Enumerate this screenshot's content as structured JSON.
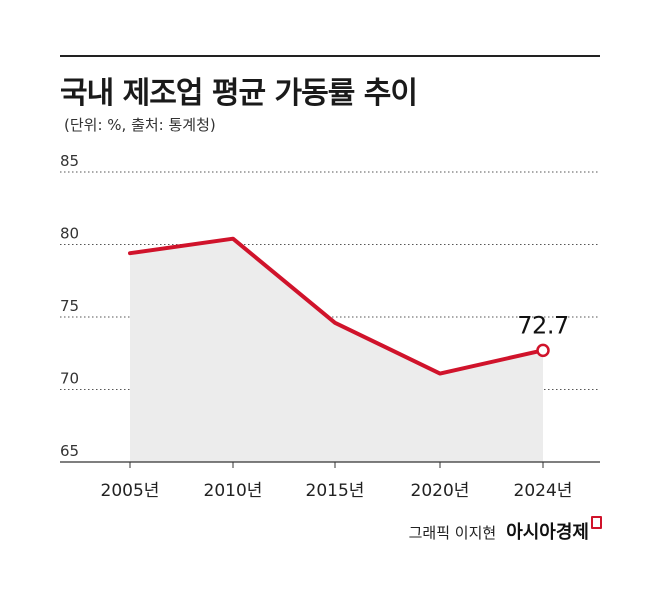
{
  "title": "국내 제조업 평균 가동률 추이",
  "subtitle": "(단위: %, 출처: 통계청)",
  "credit": {
    "artist": "그래픽 이지현",
    "brand": "아시아경제"
  },
  "colors": {
    "line": "#d0132b",
    "area": "#ececec",
    "grid": "#555555",
    "axis": "#333333",
    "rule": "#222222"
  },
  "chart_data": {
    "type": "line",
    "title": "국내 제조업 평균 가동률 추이",
    "xlabel": "",
    "ylabel": "",
    "categories": [
      "2005년",
      "2010년",
      "2015년",
      "2020년",
      "2024년"
    ],
    "series": [
      {
        "values": [
          79.4,
          80.4,
          74.6,
          71.1,
          72.7
        ]
      }
    ],
    "ylim": [
      65,
      85
    ],
    "yticks": [
      65,
      70,
      75,
      80,
      85
    ],
    "grid": true,
    "area_fill": true,
    "annotations": [
      {
        "category": "2024년",
        "label": "72.7"
      }
    ]
  }
}
